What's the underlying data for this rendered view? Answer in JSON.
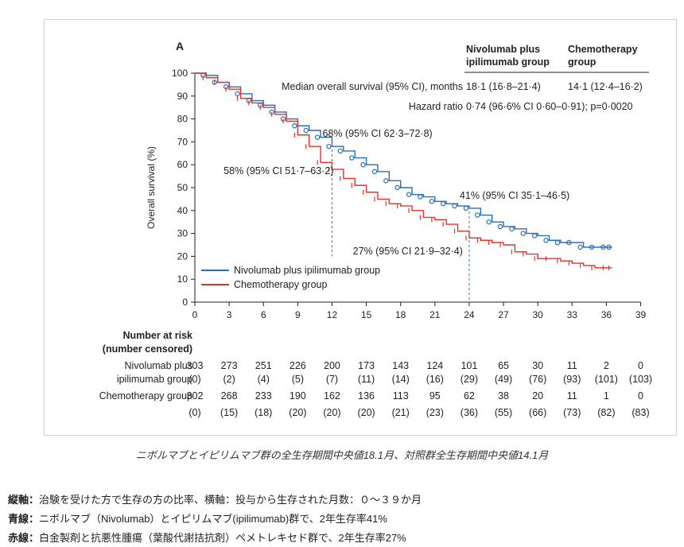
{
  "chart_data": {
    "type": "line",
    "panel_label": "A",
    "ylabel": "Overall survival (%)",
    "xlim": [
      0,
      39
    ],
    "ylim": [
      0,
      100
    ],
    "xticks": [
      0,
      3,
      6,
      9,
      12,
      15,
      18,
      21,
      24,
      27,
      30,
      33,
      36,
      39
    ],
    "yticks": [
      0,
      10,
      20,
      30,
      40,
      50,
      60,
      70,
      80,
      90,
      100
    ],
    "colors": {
      "nivolumab": "#2a6db5",
      "chemo": "#e8312a"
    },
    "series": [
      {
        "name": "Nivolumab plus ipilimumab group",
        "color": "#2a6db5",
        "x": [
          0,
          1,
          2,
          3,
          4,
          5,
          6,
          7,
          8,
          9,
          10,
          11,
          12,
          13,
          14,
          15,
          16,
          17,
          18,
          19,
          20,
          21,
          22,
          23,
          24,
          25,
          26,
          27,
          28,
          29,
          30,
          31,
          32,
          33,
          34,
          35,
          36,
          36.5
        ],
        "y": [
          100,
          99,
          96,
          94,
          91,
          88,
          86,
          83,
          80,
          77,
          75,
          72,
          68,
          66,
          63,
          60,
          57,
          53,
          50,
          47,
          46,
          44,
          43,
          42,
          41,
          38,
          35,
          33,
          32,
          30,
          29,
          27,
          26,
          26,
          24,
          24,
          24,
          24
        ]
      },
      {
        "name": "Chemotherapy group",
        "color": "#e8312a",
        "x": [
          0,
          1,
          2,
          3,
          4,
          5,
          6,
          7,
          8,
          9,
          10,
          11,
          12,
          13,
          14,
          15,
          16,
          17,
          18,
          19,
          20,
          21,
          22,
          23,
          24,
          25,
          26,
          27,
          28,
          29,
          30,
          31,
          32,
          33,
          34,
          35,
          36,
          36.5
        ],
        "y": [
          100,
          98,
          96,
          93,
          89,
          87,
          85,
          82,
          79,
          73,
          68,
          61,
          58,
          54,
          51,
          48,
          45,
          43,
          42,
          40,
          37,
          36,
          34,
          31,
          28,
          27,
          26,
          25,
          22,
          21,
          19,
          19,
          18,
          17,
          16,
          15,
          15,
          15
        ]
      }
    ],
    "annotations": {
      "nivo_12": "68% (95% CI 62·3–72·8)",
      "chemo_12": "58% (95% CI 51·7–63·2)",
      "nivo_24": "41% (95% CI 35·1–46·5)",
      "chemo_24": "27% (95% CI 21·9–32·4)"
    },
    "stats": {
      "col_nivo": "Nivolumab plus ipilimumab group",
      "col_chemo": "Chemotherapy group",
      "median_label": "Median overall survival (95% CI), months",
      "median_nivo": "18·1 (16·8–21·4)",
      "median_chemo": "14·1 (12·4–16·2)",
      "hr_label": "Hazard ratio",
      "hr_value": "0·74 (96·6% CI 0·60–0·91); p=0·0020"
    },
    "risk_table": {
      "title": "Number at risk\n(number censored)",
      "nivo_label": "Nivolumab plus\nipilimumab group",
      "chemo_label": "Chemotherapy group",
      "nivo_at_risk": [
        "303",
        "273",
        "251",
        "226",
        "200",
        "173",
        "143",
        "124",
        "101",
        "65",
        "30",
        "11",
        "2",
        "0"
      ],
      "nivo_censored": [
        "(0)",
        "(2)",
        "(4)",
        "(5)",
        "(7)",
        "(11)",
        "(14)",
        "(16)",
        "(29)",
        "(49)",
        "(76)",
        "(93)",
        "(101)",
        "(103)"
      ],
      "chemo_at_risk": [
        "302",
        "268",
        "233",
        "190",
        "162",
        "136",
        "113",
        "95",
        "62",
        "38",
        "20",
        "11",
        "1",
        "0"
      ],
      "chemo_censored": [
        "(0)",
        "(15)",
        "(18)",
        "(20)",
        "(20)",
        "(20)",
        "(21)",
        "(23)",
        "(36)",
        "(55)",
        "(66)",
        "(73)",
        "(82)",
        "(83)"
      ]
    }
  },
  "caption": "ニボルマブとイピリムマブ群の全生存期間中央値18.1月、対照群全生存期間中央値14.1月",
  "notes": [
    {
      "key": "縦軸：",
      "text": "治験を受けた方で生存の方の比率、横軸：投与から生存された月数：０～３９か月"
    },
    {
      "key": "青線：",
      "text": "ニボルマブ（Nivolumab）とイピリムマブ(ipilimumab)群で、2年生存率41%"
    },
    {
      "key": "赤線：",
      "text": "白金製剤と抗悪性腫瘍（葉酸代謝拮抗剤）ペメトレキセド群で、2年生存率27%"
    }
  ]
}
